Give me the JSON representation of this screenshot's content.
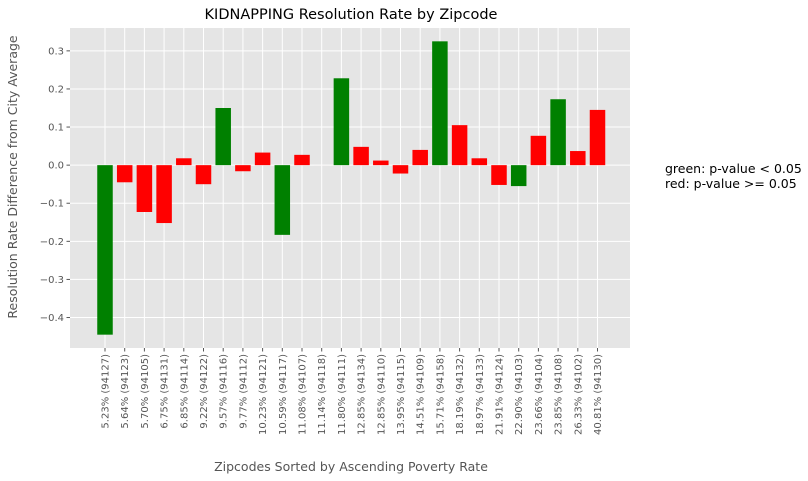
{
  "chart_data": {
    "type": "bar",
    "title": "KIDNAPPING Resolution Rate by Zipcode",
    "xlabel": "Zipcodes Sorted by Ascending Poverty Rate",
    "ylabel": "Resolution Rate Difference from City Average",
    "ylim": [
      -0.48,
      0.36
    ],
    "yticks": [
      -0.4,
      -0.3,
      -0.2,
      -0.1,
      0.0,
      0.1,
      0.2,
      0.3
    ],
    "ytick_labels": [
      "−0.4",
      "−0.3",
      "−0.2",
      "−0.1",
      "0.0",
      "0.1",
      "0.2",
      "0.3"
    ],
    "grid": true,
    "categories": [
      "5.23%  (94127)",
      "5.64%  (94123)",
      "5.70%  (94105)",
      "6.75%  (94131)",
      "6.85%  (94114)",
      "9.22%  (94122)",
      "9.57%  (94116)",
      "9.77%  (94112)",
      "10.23%  (94121)",
      "10.59%  (94117)",
      "11.08%  (94107)",
      "11.14%  (94118)",
      "11.80%  (94111)",
      "12.85%  (94134)",
      "12.85%  (94110)",
      "13.95%  (94115)",
      "14.51%  (94109)",
      "15.71%  (94158)",
      "18.19%  (94132)",
      "18.97%  (94133)",
      "21.91%  (94124)",
      "22.90%  (94103)",
      "23.66%  (94104)",
      "23.85%  (94108)",
      "26.33%  (94102)",
      "40.81%  (94130)"
    ],
    "values": [
      -0.445,
      -0.045,
      -0.123,
      -0.152,
      0.018,
      -0.05,
      0.15,
      -0.016,
      0.033,
      -0.183,
      0.027,
      0.0,
      0.228,
      0.048,
      0.012,
      -0.022,
      0.04,
      0.325,
      0.105,
      0.018,
      -0.052,
      -0.055,
      0.077,
      0.173,
      0.037,
      0.145
    ],
    "significant": [
      true,
      false,
      false,
      false,
      false,
      false,
      true,
      false,
      false,
      true,
      false,
      false,
      true,
      false,
      false,
      false,
      false,
      true,
      false,
      false,
      false,
      true,
      false,
      true,
      false,
      false
    ],
    "colors": {
      "significant": "#008000",
      "not_significant": "#ff0000",
      "plot_bg": "#e5e5e5",
      "grid": "#ffffff",
      "text": "#555555"
    },
    "annotation": [
      "green: p-value < 0.05",
      "red: p-value >= 0.05"
    ]
  }
}
